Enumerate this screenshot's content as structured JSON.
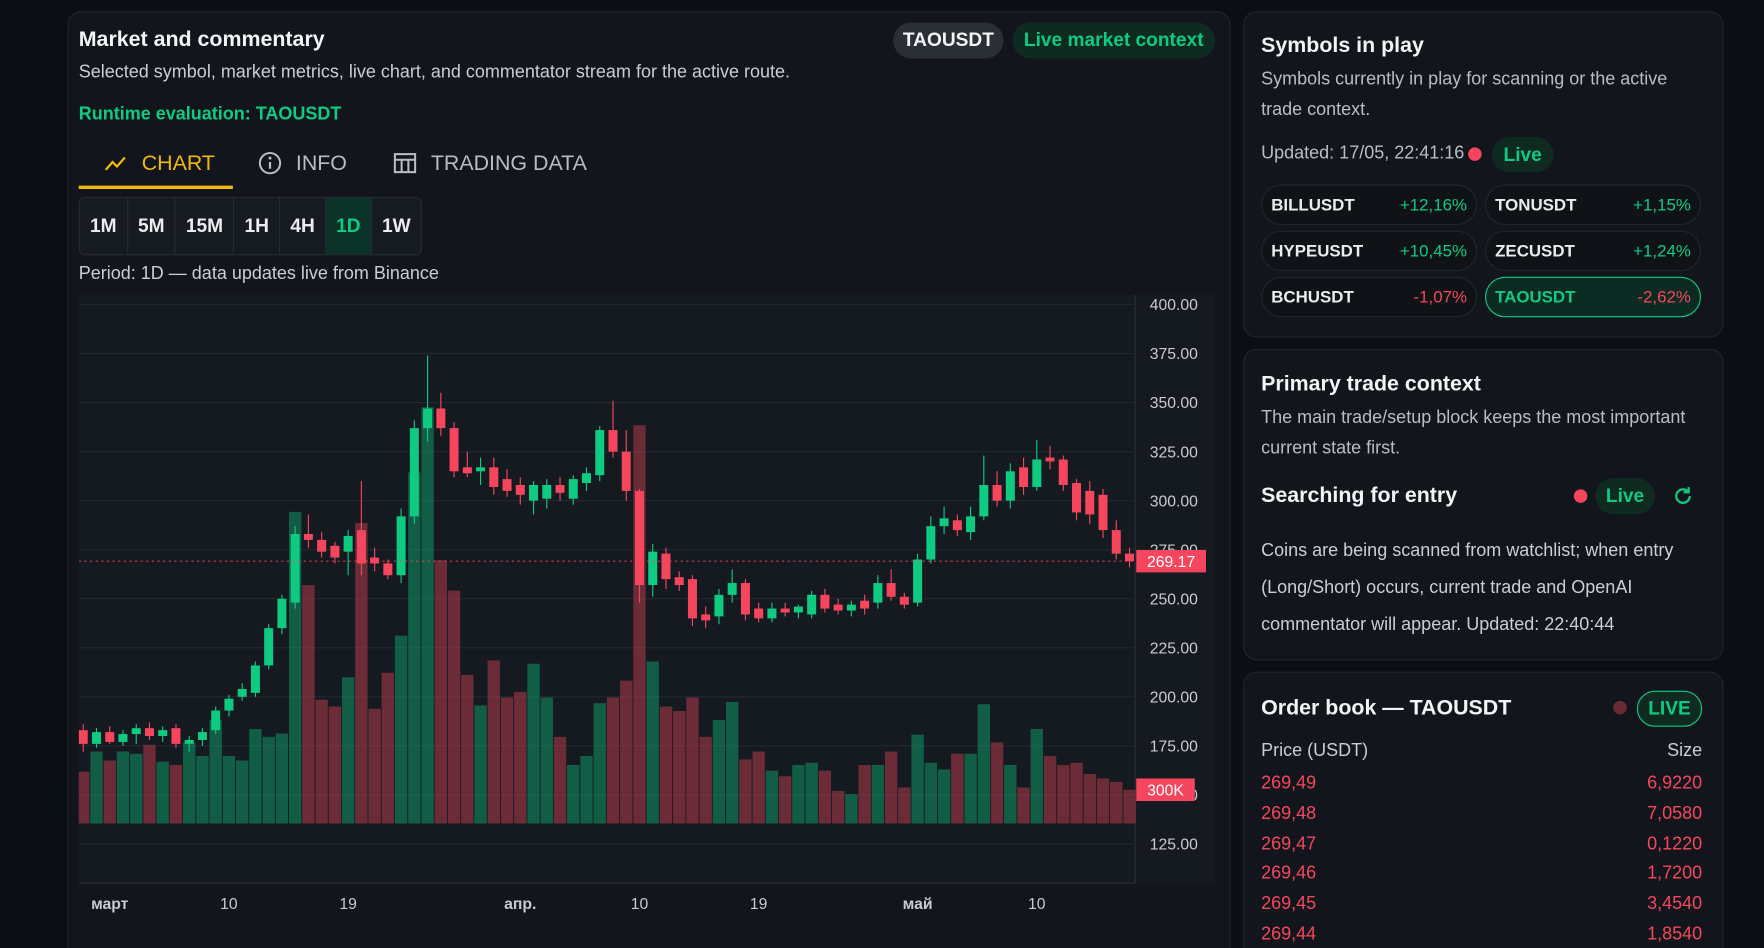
{
  "header": {
    "title": "Market and commentary",
    "subtitle": "Selected symbol, market metrics, live chart, and commentator stream for the active route.",
    "symbol_tag": "TAOUSDT",
    "live_tag": "Live market context",
    "runtime": "Runtime evaluation: TAOUSDT"
  },
  "tabs": [
    "CHART",
    "INFO",
    "TRADING DATA"
  ],
  "intervals": [
    "1M",
    "5M",
    "15M",
    "1H",
    "4H",
    "1D",
    "1W"
  ],
  "active_interval": 5,
  "period_note": "Period: 1D — data updates live from Binance",
  "chart_data": {
    "type": "candlestick",
    "categories": [
      null,
      null,
      "март",
      null,
      null,
      null,
      null,
      null,
      null,
      null,
      null,
      "10",
      null,
      null,
      null,
      null,
      null,
      null,
      null,
      null,
      "19",
      null,
      null,
      null,
      null,
      null,
      null,
      null,
      null,
      null,
      null,
      null,
      null,
      "апр.",
      null,
      null,
      null,
      null,
      null,
      null,
      null,
      null,
      "10",
      null,
      null,
      null,
      null,
      null,
      null,
      null,
      null,
      "19",
      null,
      null,
      null,
      null,
      null,
      null,
      null,
      null,
      null,
      null,
      null,
      "май",
      null,
      null,
      null,
      null,
      null,
      null,
      null,
      null,
      "10",
      null,
      null,
      null,
      null,
      null,
      null,
      null
    ],
    "open": [
      183,
      176,
      182,
      177,
      181,
      184,
      180,
      184,
      176,
      178,
      183,
      193,
      200,
      202,
      216,
      235,
      248,
      283,
      280,
      277,
      274,
      285,
      271,
      268,
      262,
      292,
      337,
      347,
      337,
      317,
      315,
      317,
      311,
      308,
      300,
      301,
      308,
      301,
      309,
      313,
      336,
      325,
      305,
      257,
      273,
      261,
      260,
      242,
      241,
      252,
      258,
      245,
      240,
      245,
      243,
      242,
      252,
      247,
      244,
      249,
      248,
      258,
      251,
      248,
      270,
      287,
      290,
      284,
      292,
      308,
      300,
      317,
      307,
      322,
      321,
      309,
      305,
      303,
      285,
      273
    ],
    "high": [
      186,
      184,
      185,
      183,
      186,
      187,
      185,
      186,
      180,
      184,
      195,
      201,
      207,
      218,
      237,
      252,
      287,
      293,
      284,
      279,
      285,
      310,
      276,
      270,
      296,
      341,
      374,
      355,
      340,
      325,
      322,
      322,
      316,
      312,
      310,
      311,
      312,
      313,
      317,
      338,
      351,
      336,
      306,
      278,
      276,
      264,
      262,
      246,
      255,
      265,
      260,
      248,
      248,
      248,
      247,
      254,
      255,
      250,
      249,
      252,
      262,
      265,
      253,
      273,
      292,
      297,
      293,
      297,
      323,
      315,
      319,
      322,
      331,
      328,
      323,
      311,
      310,
      306,
      290,
      276
    ],
    "low": [
      172,
      174,
      176,
      175,
      176,
      178,
      177,
      174,
      172,
      175,
      181,
      190,
      198,
      200,
      214,
      232,
      245,
      276,
      271,
      268,
      262,
      262,
      264,
      260,
      258,
      288,
      330,
      333,
      312,
      312,
      308,
      303,
      302,
      298,
      293,
      296,
      300,
      298,
      305,
      310,
      322,
      300,
      248,
      251,
      255,
      254,
      236,
      235,
      237,
      248,
      239,
      238,
      238,
      241,
      240,
      240,
      243,
      242,
      241,
      242,
      245,
      249,
      245,
      246,
      268,
      283,
      282,
      280,
      290,
      297,
      296,
      303,
      305,
      316,
      305,
      290,
      288,
      281,
      270,
      266
    ],
    "close": [
      176,
      182,
      177,
      181,
      184,
      180,
      183,
      176,
      178,
      182,
      193,
      199,
      204,
      216,
      235,
      250,
      283,
      280,
      274,
      271,
      282,
      268,
      268,
      262,
      292,
      337,
      347,
      337,
      315,
      314,
      317,
      307,
      305,
      303,
      308,
      308,
      304,
      311,
      314,
      336,
      325,
      305,
      257,
      274,
      260,
      257,
      240,
      239,
      252,
      258,
      242,
      240,
      245,
      243,
      246,
      252,
      245,
      244,
      247,
      245,
      258,
      251,
      247,
      270,
      287,
      291,
      285,
      292,
      308,
      300,
      315,
      307,
      321,
      320,
      308,
      294,
      293,
      285,
      273,
      269.17
    ],
    "volume": [
      460000,
      640000,
      560000,
      640000,
      620000,
      700000,
      550000,
      520000,
      720000,
      600000,
      920000,
      600000,
      560000,
      840000,
      770000,
      800000,
      2770000,
      2120000,
      1100000,
      1040000,
      1300000,
      2670000,
      1020000,
      1340000,
      1670000,
      3120000,
      3700000,
      2340000,
      2070000,
      1320000,
      1050000,
      1450000,
      1120000,
      1170000,
      1420000,
      1120000,
      770000,
      520000,
      600000,
      1070000,
      1120000,
      1270000,
      3540000,
      1440000,
      1040000,
      1000000,
      1120000,
      770000,
      920000,
      1080000,
      570000,
      640000,
      470000,
      420000,
      520000,
      540000,
      470000,
      290000,
      260000,
      520000,
      520000,
      640000,
      320000,
      790000,
      540000,
      480000,
      620000,
      620000,
      1060000,
      720000,
      520000,
      320000,
      840000,
      600000,
      520000,
      540000,
      440000,
      400000,
      370000,
      300000
    ],
    "volume_label": "300K",
    "ylim": [
      105,
      405
    ],
    "yticks": [
      {
        "value": 125,
        "label": "125.00"
      },
      {
        "value": 150,
        "label": "150.00"
      },
      {
        "value": 175,
        "label": "175.00"
      },
      {
        "value": 200,
        "label": "200.00"
      },
      {
        "value": 225,
        "label": "225.00"
      },
      {
        "value": 250,
        "label": "250.00"
      },
      {
        "value": 275,
        "label": "275.00"
      },
      {
        "value": 300,
        "label": "300.00"
      },
      {
        "value": 325,
        "label": "325.00"
      },
      {
        "value": 350,
        "label": "350.00"
      },
      {
        "value": 375,
        "label": "375.00"
      },
      {
        "value": 400,
        "label": "400.00"
      }
    ],
    "vlim": [
      0,
      4700000
    ],
    "grid": true,
    "up_color": "#0ecb81",
    "down_color": "#f6465d"
  },
  "symbols": {
    "title": "Symbols in play",
    "description": "Symbols currently in play for scanning or the active trade context.",
    "updated": "Updated: 17/05, 22:41:16",
    "live": "Live",
    "selected": 5,
    "items": [
      {
        "name": "BILLUSDT",
        "change": "+12,16%"
      },
      {
        "name": "TONUSDT",
        "change": "+1,15%"
      },
      {
        "name": "HYPEUSDT",
        "change": "+10,45%"
      },
      {
        "name": "ZECUSDT",
        "change": "+1,24%"
      },
      {
        "name": "BCHUSDT",
        "change": "-1,07%"
      },
      {
        "name": "TAOUSDT",
        "change": "-2,62%"
      }
    ]
  },
  "trade_context": {
    "title": "Primary trade context",
    "description": "The main trade/setup block keeps the most important current state first.",
    "status": "Searching for entry",
    "live": "Live",
    "note": "Coins are being scanned from watchlist; when entry (Long/Short) occurs, current trade and OpenAI commentator will appear. Updated: 22:40:44"
  },
  "order_book": {
    "title": "Order book — TAOUSDT",
    "live": "LIVE",
    "columns": [
      "Price (USDT)",
      "Size"
    ],
    "rows": [
      [
        "269,49",
        "6,9220"
      ],
      [
        "269,48",
        "7,0580"
      ],
      [
        "269,47",
        "0,1220"
      ],
      [
        "269,46",
        "1,7200"
      ],
      [
        "269,45",
        "3,4540"
      ],
      [
        "269,44",
        "1,8540"
      ]
    ]
  }
}
